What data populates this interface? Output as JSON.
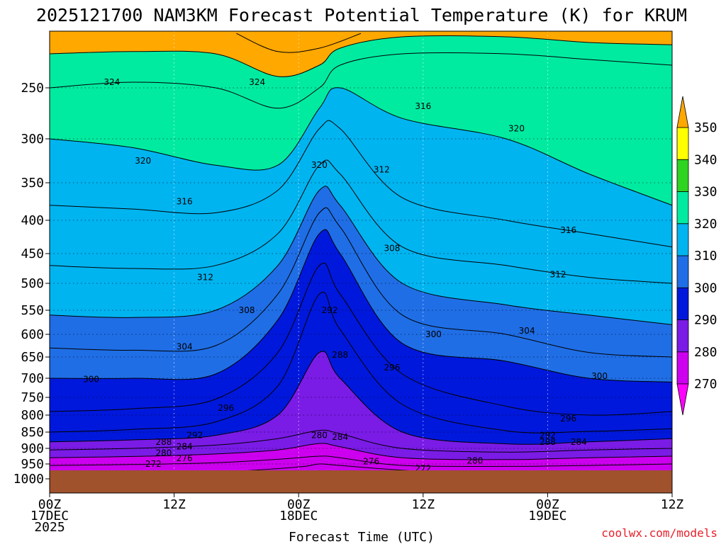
{
  "chart_data": {
    "type": "heatmap",
    "title": "2025121700 NAM3KM Forecast Potential Temperature (K) for KRUM",
    "xlabel": "Forecast Time (UTC)",
    "ylabel": "",
    "x_units": "hours from 2025-12-17 00Z",
    "xlim": [
      0,
      60
    ],
    "ylim": [
      1000,
      200
    ],
    "y_scale": "pressure (hPa), decreasing upward",
    "grid": true,
    "x_ticks": [
      {
        "hour": 0,
        "lines": [
          "00Z",
          "17DEC",
          "2025"
        ]
      },
      {
        "hour": 12,
        "lines": [
          "12Z"
        ]
      },
      {
        "hour": 24,
        "lines": [
          "00Z",
          "18DEC"
        ]
      },
      {
        "hour": 36,
        "lines": [
          "12Z"
        ]
      },
      {
        "hour": 48,
        "lines": [
          "00Z",
          "19DEC"
        ]
      },
      {
        "hour": 60,
        "lines": [
          "12Z"
        ]
      }
    ],
    "y_ticks": [
      250,
      300,
      350,
      400,
      450,
      500,
      550,
      600,
      650,
      700,
      750,
      800,
      850,
      900,
      950,
      1000
    ],
    "colorbar": {
      "levels": [
        270,
        280,
        290,
        300,
        310,
        320,
        330,
        340,
        350
      ],
      "colors": [
        "#ff00ff",
        "#cc00ee",
        "#7a1be6",
        "#0018dc",
        "#1f6ee6",
        "#00b4f0",
        "#00eba0",
        "#2fd420",
        "#ffff00",
        "#ffa800"
      ]
    },
    "ground_color": "#a0522d",
    "isentropes": [
      {
        "theta": 272,
        "points": [
          [
            0,
            985
          ],
          [
            8,
            982
          ],
          [
            16,
            978
          ],
          [
            24,
            960
          ],
          [
            26,
            950
          ],
          [
            28,
            955
          ],
          [
            36,
            975
          ],
          [
            44,
            978
          ],
          [
            52,
            978
          ],
          [
            60,
            976
          ]
        ]
      },
      {
        "theta": 276,
        "points": [
          [
            0,
            955
          ],
          [
            8,
            952
          ],
          [
            16,
            946
          ],
          [
            22,
            935
          ],
          [
            26,
            925
          ],
          [
            28,
            930
          ],
          [
            34,
            955
          ],
          [
            44,
            958
          ],
          [
            52,
            955
          ],
          [
            60,
            950
          ]
        ]
      },
      {
        "theta": 280,
        "points": [
          [
            0,
            930
          ],
          [
            8,
            926
          ],
          [
            16,
            918
          ],
          [
            22,
            905
          ],
          [
            26,
            885
          ],
          [
            28,
            895
          ],
          [
            34,
            930
          ],
          [
            44,
            936
          ],
          [
            52,
            930
          ],
          [
            60,
            925
          ]
        ]
      },
      {
        "theta": 284,
        "points": [
          [
            0,
            905
          ],
          [
            8,
            900
          ],
          [
            16,
            890
          ],
          [
            22,
            870
          ],
          [
            26,
            845
          ],
          [
            28,
            855
          ],
          [
            34,
            900
          ],
          [
            44,
            912
          ],
          [
            52,
            905
          ],
          [
            60,
            900
          ]
        ]
      },
      {
        "theta": 288,
        "points": [
          [
            0,
            880
          ],
          [
            8,
            874
          ],
          [
            16,
            860
          ],
          [
            22,
            800
          ],
          [
            26,
            640
          ],
          [
            28,
            700
          ],
          [
            34,
            850
          ],
          [
            44,
            886
          ],
          [
            52,
            880
          ],
          [
            60,
            870
          ]
        ]
      },
      {
        "theta": 292,
        "points": [
          [
            0,
            850
          ],
          [
            8,
            842
          ],
          [
            16,
            820
          ],
          [
            22,
            720
          ],
          [
            26,
            520
          ],
          [
            28,
            590
          ],
          [
            34,
            770
          ],
          [
            44,
            846
          ],
          [
            52,
            848
          ],
          [
            60,
            840
          ]
        ]
      },
      {
        "theta": 296,
        "points": [
          [
            0,
            790
          ],
          [
            8,
            782
          ],
          [
            16,
            755
          ],
          [
            22,
            640
          ],
          [
            26,
            470
          ],
          [
            28,
            520
          ],
          [
            34,
            690
          ],
          [
            44,
            775
          ],
          [
            52,
            800
          ],
          [
            60,
            790
          ]
        ]
      },
      {
        "theta": 300,
        "points": [
          [
            0,
            700
          ],
          [
            8,
            700
          ],
          [
            16,
            690
          ],
          [
            22,
            570
          ],
          [
            26,
            420
          ],
          [
            28,
            450
          ],
          [
            34,
            620
          ],
          [
            44,
            660
          ],
          [
            52,
            700
          ],
          [
            60,
            710
          ]
        ]
      },
      {
        "theta": 304,
        "points": [
          [
            0,
            630
          ],
          [
            8,
            635
          ],
          [
            16,
            625
          ],
          [
            22,
            520
          ],
          [
            26,
            390
          ],
          [
            28,
            410
          ],
          [
            34,
            560
          ],
          [
            44,
            600
          ],
          [
            52,
            640
          ],
          [
            60,
            650
          ]
        ]
      },
      {
        "theta": 308,
        "points": [
          [
            0,
            560
          ],
          [
            8,
            565
          ],
          [
            16,
            550
          ],
          [
            22,
            470
          ],
          [
            26,
            360
          ],
          [
            28,
            380
          ],
          [
            34,
            500
          ],
          [
            44,
            540
          ],
          [
            52,
            560
          ],
          [
            60,
            580
          ]
        ]
      },
      {
        "theta": 312,
        "points": [
          [
            0,
            470
          ],
          [
            8,
            475
          ],
          [
            16,
            470
          ],
          [
            22,
            420
          ],
          [
            26,
            330
          ],
          [
            28,
            340
          ],
          [
            34,
            440
          ],
          [
            44,
            470
          ],
          [
            52,
            490
          ],
          [
            60,
            500
          ]
        ]
      },
      {
        "theta": 316,
        "points": [
          [
            0,
            380
          ],
          [
            8,
            385
          ],
          [
            16,
            390
          ],
          [
            22,
            360
          ],
          [
            26,
            290
          ],
          [
            28,
            290
          ],
          [
            34,
            370
          ],
          [
            44,
            400
          ],
          [
            52,
            420
          ],
          [
            60,
            440
          ]
        ]
      },
      {
        "theta": 320,
        "points": [
          [
            0,
            300
          ],
          [
            8,
            310
          ],
          [
            16,
            330
          ],
          [
            22,
            330
          ],
          [
            26,
            270
          ],
          [
            28,
            250
          ],
          [
            34,
            280
          ],
          [
            44,
            300
          ],
          [
            52,
            340
          ],
          [
            60,
            380
          ]
        ]
      },
      {
        "theta": 324,
        "points": [
          [
            0,
            250
          ],
          [
            8,
            245
          ],
          [
            16,
            250
          ],
          [
            22,
            270
          ],
          [
            26,
            250
          ],
          [
            28,
            230
          ],
          [
            34,
            220
          ],
          [
            44,
            220
          ],
          [
            52,
            225
          ],
          [
            60,
            230
          ]
        ]
      },
      {
        "theta": 330,
        "points": [
          [
            0,
            220
          ],
          [
            8,
            218
          ],
          [
            16,
            220
          ],
          [
            22,
            240
          ],
          [
            26,
            230
          ],
          [
            28,
            215
          ],
          [
            34,
            205
          ],
          [
            44,
            205
          ],
          [
            52,
            210
          ],
          [
            60,
            212
          ]
        ]
      },
      {
        "theta": 340,
        "points": [
          [
            18,
            202
          ],
          [
            22,
            218
          ],
          [
            26,
            215
          ],
          [
            30,
            202
          ]
        ]
      }
    ],
    "contour_labels": [
      {
        "theta": 324,
        "text": "324",
        "hour": 6,
        "pressure": 245
      },
      {
        "theta": 324,
        "text": "324",
        "hour": 20,
        "pressure": 245
      },
      {
        "theta": 320,
        "text": "320",
        "hour": 9,
        "pressure": 325
      },
      {
        "theta": 320,
        "text": "320",
        "hour": 26,
        "pressure": 330
      },
      {
        "theta": 320,
        "text": "320",
        "hour": 45,
        "pressure": 290
      },
      {
        "theta": 316,
        "text": "316",
        "hour": 13,
        "pressure": 375
      },
      {
        "theta": 316,
        "text": "316",
        "hour": 36,
        "pressure": 268
      },
      {
        "theta": 316,
        "text": "316",
        "hour": 50,
        "pressure": 415
      },
      {
        "theta": 312,
        "text": "312",
        "hour": 15,
        "pressure": 490
      },
      {
        "theta": 312,
        "text": "312",
        "hour": 32,
        "pressure": 335
      },
      {
        "theta": 312,
        "text": "312",
        "hour": 49,
        "pressure": 485
      },
      {
        "theta": 308,
        "text": "308",
        "hour": 19,
        "pressure": 550
      },
      {
        "theta": 308,
        "text": "308",
        "hour": 33,
        "pressure": 442
      },
      {
        "theta": 304,
        "text": "304",
        "hour": 13,
        "pressure": 627
      },
      {
        "theta": 304,
        "text": "304",
        "hour": 46,
        "pressure": 593
      },
      {
        "theta": 300,
        "text": "300",
        "hour": 4,
        "pressure": 703
      },
      {
        "theta": 300,
        "text": "300",
        "hour": 37,
        "pressure": 600
      },
      {
        "theta": 300,
        "text": "300",
        "hour": 53,
        "pressure": 695
      },
      {
        "theta": 296,
        "text": "296",
        "hour": 17,
        "pressure": 780
      },
      {
        "theta": 296,
        "text": "296",
        "hour": 33,
        "pressure": 675
      },
      {
        "theta": 296,
        "text": "296",
        "hour": 50,
        "pressure": 810
      },
      {
        "theta": 292,
        "text": "292",
        "hour": 14,
        "pressure": 860
      },
      {
        "theta": 292,
        "text": "292",
        "hour": 27,
        "pressure": 550
      },
      {
        "theta": 292,
        "text": "292",
        "hour": 48,
        "pressure": 860
      },
      {
        "theta": 288,
        "text": "288",
        "hour": 11,
        "pressure": 880
      },
      {
        "theta": 288,
        "text": "288",
        "hour": 28,
        "pressure": 645
      },
      {
        "theta": 288,
        "text": "288",
        "hour": 48,
        "pressure": 880
      },
      {
        "theta": 284,
        "text": "284",
        "hour": 13,
        "pressure": 895
      },
      {
        "theta": 284,
        "text": "284",
        "hour": 28,
        "pressure": 865
      },
      {
        "theta": 284,
        "text": "284",
        "hour": 51,
        "pressure": 880
      },
      {
        "theta": 280,
        "text": "280",
        "hour": 11,
        "pressure": 915
      },
      {
        "theta": 280,
        "text": "280",
        "hour": 26,
        "pressure": 860
      },
      {
        "theta": 280,
        "text": "280",
        "hour": 41,
        "pressure": 940
      },
      {
        "theta": 276,
        "text": "276",
        "hour": 13,
        "pressure": 932
      },
      {
        "theta": 276,
        "text": "276",
        "hour": 31,
        "pressure": 942
      },
      {
        "theta": 272,
        "text": "272",
        "hour": 10,
        "pressure": 950
      },
      {
        "theta": 272,
        "text": "272",
        "hour": 36,
        "pressure": 965
      }
    ]
  },
  "credit": "coolwx.com/models"
}
